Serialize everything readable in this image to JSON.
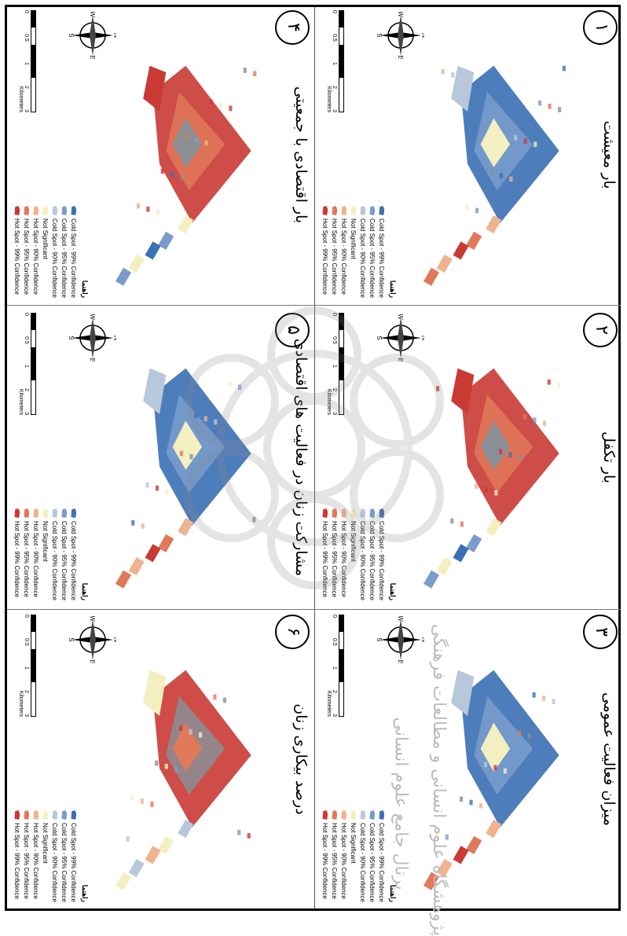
{
  "legend": {
    "title": "راهنما",
    "items": [
      {
        "label": "Cold Spot - 99% Confidence",
        "color": "#3b6fb5"
      },
      {
        "label": "Cold Spot - 95% Confidence",
        "color": "#7a9ccc"
      },
      {
        "label": "Cold Spot - 90% Confidence",
        "color": "#b6c8da"
      },
      {
        "label": "Not Significant",
        "color": "#f4efc0"
      },
      {
        "label": "Hot Spot - 90% Confidence",
        "color": "#efb38f"
      },
      {
        "label": "Hot Spot - 95% Confidence",
        "color": "#e0795a"
      },
      {
        "label": "Hot Spot - 99% Confidence",
        "color": "#c93a34"
      }
    ]
  },
  "compass": {
    "n": "N",
    "s": "S",
    "e": "E",
    "w": "W"
  },
  "scalebar": {
    "ticks": [
      "0",
      "0.5",
      "1",
      "2",
      "3"
    ],
    "unit": "Kilometers"
  },
  "panels": [
    {
      "number": "۱",
      "title": "بار معیشت",
      "dominant": "cold"
    },
    {
      "number": "۲",
      "title": "بار تکفل",
      "dominant": "hot"
    },
    {
      "number": "۳",
      "title": "میزان فعالیت عمومی",
      "dominant": "cold"
    },
    {
      "number": "۴",
      "title": "بار اقتصادی با جمعیتی",
      "dominant": "hot"
    },
    {
      "number": "۵",
      "title": "مشارکت زنان در فعالیت های اقتصادی",
      "dominant": "cold"
    },
    {
      "number": "۶",
      "title": "درصد بیکاری زنان",
      "dominant": "mixed"
    }
  ],
  "watermark": {
    "line1": "پژوهشگاه علوم انسانی و مطالعات فرهنگی",
    "line2": "پرتال جامع علوم انسانی"
  },
  "colors": {
    "cold99": "#3b6fb5",
    "cold95": "#7a9ccc",
    "cold90": "#b6c8da",
    "ns": "#f4efc0",
    "hot90": "#efb38f",
    "hot95": "#e0795a",
    "hot99": "#c93a34",
    "gray": "#8a8f96"
  }
}
